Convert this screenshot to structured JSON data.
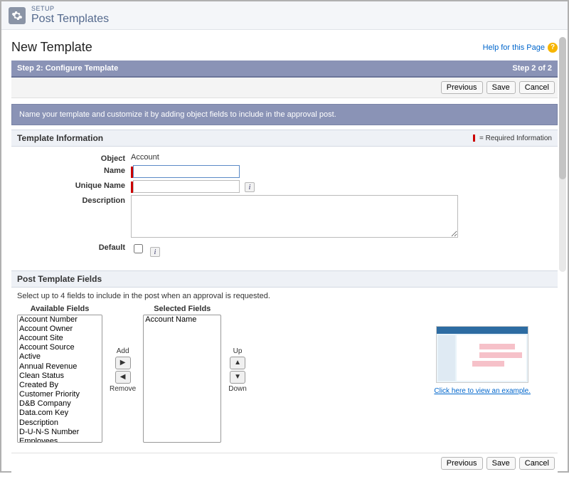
{
  "header": {
    "eyebrow": "SETUP",
    "page_title": "Post Templates"
  },
  "title": "New Template",
  "help": {
    "label": "Help for this Page"
  },
  "step_bar": {
    "left": "Step 2: Configure Template",
    "right": "Step 2 of 2"
  },
  "buttons": {
    "previous": "Previous",
    "save": "Save",
    "cancel": "Cancel"
  },
  "instruction": "Name your template and customize it by adding object fields to include in the approval post.",
  "sections": {
    "template_info": {
      "title": "Template Information",
      "required_legend": "= Required Information",
      "labels": {
        "object": "Object",
        "name": "Name",
        "unique_name": "Unique Name",
        "description": "Description",
        "default": "Default"
      },
      "values": {
        "object": "Account",
        "name": "",
        "unique_name": "",
        "description": "",
        "default_checked": false
      }
    },
    "fields": {
      "title": "Post Template Fields",
      "instruction": "Select up to 4 fields to include in the post when an approval is requested.",
      "available_title": "Available Fields",
      "selected_title": "Selected Fields",
      "add_label": "Add",
      "remove_label": "Remove",
      "up_label": "Up",
      "down_label": "Down",
      "available": [
        "Account Number",
        "Account Owner",
        "Account Site",
        "Account Source",
        "Active",
        "Annual Revenue",
        "Clean Status",
        "Created By",
        "Customer Priority",
        "D&B Company",
        "Data.com Key",
        "Description",
        "D-U-N-S Number",
        "Employees"
      ],
      "selected": [
        "Account Name"
      ],
      "example_link": "Click here to view an example."
    }
  },
  "colors": {
    "step_bar_bg": "#8a93b6",
    "accent_border": "#6b7599",
    "required_red": "#c00",
    "link": "#0066cc"
  }
}
